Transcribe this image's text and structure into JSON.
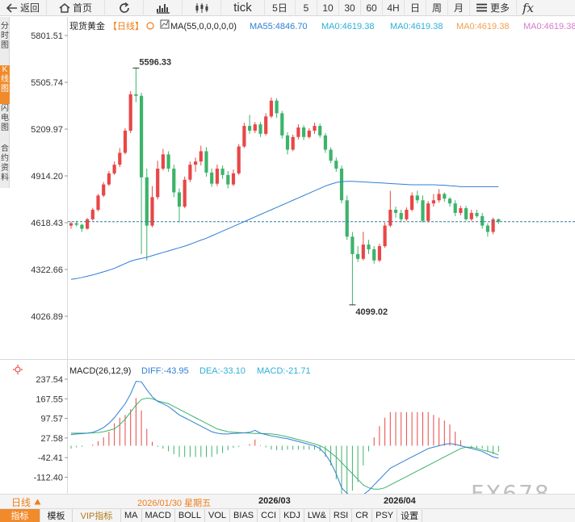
{
  "toolbar": {
    "back": "返回",
    "home": "首页",
    "tick": "tick",
    "periods": [
      "5日",
      "5",
      "10",
      "30",
      "60",
      "4H",
      "日",
      "周",
      "月"
    ],
    "more": "更多",
    "fx": "fx"
  },
  "side_tabs": [
    "分时图",
    "K线图",
    "闪电图",
    "合约资料"
  ],
  "kline": {
    "title": "现货黄金",
    "period_tag": "【日线】",
    "ma_label": "MA(55,0,0,0,0,0)",
    "ma_values": [
      "MA55:4846.70",
      "MA0:4619.38",
      "MA0:4619.38",
      "MA0:4619.38",
      "MA0:4619.38"
    ],
    "y_ticks": [
      "5801.51",
      "5505.74",
      "5209.97",
      "4914.20",
      "4618.43",
      "4322.66",
      "4026.89"
    ],
    "high_label": "5596.33",
    "low_label": "4099.02"
  },
  "macd": {
    "label": "MACD(26,12,9)",
    "diff": "DIFF:-43.95",
    "dea": "DEA:-33.10",
    "macd": "MACD:-21.71",
    "y_ticks": [
      "237.54",
      "167.55",
      "97.57",
      "27.58",
      "-42.41",
      "-112.40"
    ]
  },
  "period_button": "日线",
  "x_dates": [
    "2026/01/30 星期五",
    "2026/03",
    "2026/04"
  ],
  "indicators": [
    "指标",
    "模板",
    "VIP指标",
    "MA",
    "MACD",
    "BOLL",
    "VOL",
    "BIAS",
    "CCI",
    "KDJ",
    "LW&",
    "RSI",
    "CR",
    "PSY",
    "设置"
  ],
  "watermark": "FX678",
  "colors": {
    "up": "#e84747",
    "down": "#3db36b",
    "ma55": "#2f7fd4",
    "accent": "#f08a2b",
    "dea": "#3db36b",
    "diff": "#2f7fd4"
  },
  "chart_data": {
    "type": "candlestick",
    "candles": [
      [
        4600,
        4615,
        4580,
        4625
      ],
      [
        4615,
        4605,
        4595,
        4630
      ],
      [
        4605,
        4580,
        4560,
        4612
      ],
      [
        4580,
        4640,
        4575,
        4648
      ],
      [
        4640,
        4700,
        4632,
        4712
      ],
      [
        4700,
        4790,
        4690,
        4800
      ],
      [
        4790,
        4860,
        4780,
        4875
      ],
      [
        4860,
        4930,
        4850,
        4945
      ],
      [
        4930,
        4985,
        4920,
        5005
      ],
      [
        4985,
        5060,
        4970,
        5090
      ],
      [
        5060,
        5200,
        5050,
        5215
      ],
      [
        5200,
        5430,
        5185,
        5450
      ],
      [
        5430,
        5420,
        5380,
        5596
      ],
      [
        5420,
        4905,
        4420,
        5440
      ],
      [
        4905,
        4600,
        4380,
        4960
      ],
      [
        4600,
        4780,
        4590,
        4850
      ],
      [
        4780,
        4960,
        4765,
        5010
      ],
      [
        4960,
        5050,
        4948,
        5085
      ],
      [
        5050,
        4960,
        4940,
        5070
      ],
      [
        4960,
        4810,
        4780,
        4985
      ],
      [
        4810,
        4720,
        4620,
        4835
      ],
      [
        4720,
        4890,
        4710,
        4910
      ],
      [
        4890,
        4985,
        4875,
        5005
      ],
      [
        4985,
        5005,
        4940,
        5030
      ],
      [
        5005,
        5070,
        4980,
        5105
      ],
      [
        5070,
        4935,
        4910,
        5095
      ],
      [
        4935,
        4865,
        4845,
        4960
      ],
      [
        4865,
        4960,
        4850,
        4985
      ],
      [
        4960,
        4920,
        4895,
        4980
      ],
      [
        4920,
        4860,
        4835,
        4945
      ],
      [
        4860,
        4930,
        4850,
        4955
      ],
      [
        4930,
        5100,
        4920,
        5115
      ],
      [
        5100,
        5230,
        5090,
        5250
      ],
      [
        5230,
        5200,
        5180,
        5300
      ],
      [
        5200,
        5240,
        5185,
        5255
      ],
      [
        5240,
        5180,
        5160,
        5255
      ],
      [
        5180,
        5290,
        5170,
        5310
      ],
      [
        5290,
        5390,
        5280,
        5410
      ],
      [
        5390,
        5310,
        5280,
        5405
      ],
      [
        5310,
        5170,
        5150,
        5325
      ],
      [
        5170,
        5080,
        5050,
        5190
      ],
      [
        5080,
        5160,
        5070,
        5175
      ],
      [
        5160,
        5220,
        5145,
        5240
      ],
      [
        5220,
        5160,
        5140,
        5235
      ],
      [
        5160,
        5200,
        5150,
        5215
      ],
      [
        5200,
        5230,
        5180,
        5250
      ],
      [
        5230,
        5170,
        5155,
        5245
      ],
      [
        5170,
        5080,
        5060,
        5185
      ],
      [
        5080,
        5010,
        4995,
        5095
      ],
      [
        5010,
        4960,
        4940,
        5030
      ],
      [
        4960,
        4760,
        4740,
        4980
      ],
      [
        4760,
        4530,
        4510,
        4790
      ],
      [
        4530,
        4420,
        4099,
        4560
      ],
      [
        4420,
        4390,
        4370,
        4470
      ],
      [
        4390,
        4480,
        4380,
        4560
      ],
      [
        4480,
        4450,
        4420,
        4510
      ],
      [
        4450,
        4380,
        4360,
        4470
      ],
      [
        4380,
        4470,
        4370,
        4485
      ],
      [
        4470,
        4600,
        4460,
        4620
      ],
      [
        4600,
        4700,
        4590,
        4820
      ],
      [
        4700,
        4680,
        4650,
        4720
      ],
      [
        4680,
        4640,
        4620,
        4700
      ],
      [
        4640,
        4700,
        4630,
        4715
      ],
      [
        4700,
        4790,
        4690,
        4810
      ],
      [
        4790,
        4760,
        4740,
        4820
      ],
      [
        4760,
        4630,
        4620,
        4790
      ],
      [
        4630,
        4740,
        4620,
        4755
      ],
      [
        4740,
        4760,
        4720,
        4800
      ],
      [
        4760,
        4800,
        4745,
        4830
      ],
      [
        4800,
        4770,
        4750,
        4810
      ],
      [
        4770,
        4740,
        4720,
        4780
      ],
      [
        4740,
        4680,
        4660,
        4760
      ],
      [
        4680,
        4710,
        4665,
        4725
      ],
      [
        4710,
        4640,
        4630,
        4725
      ],
      [
        4640,
        4680,
        4630,
        4700
      ],
      [
        4680,
        4660,
        4650,
        4700
      ],
      [
        4660,
        4600,
        4580,
        4680
      ],
      [
        4600,
        4560,
        4530,
        4615
      ],
      [
        4560,
        4640,
        4545,
        4650
      ],
      [
        4640,
        4625,
        4610,
        4645
      ]
    ],
    "ma55": [
      4260,
      4265,
      4272,
      4280,
      4288,
      4298,
      4308,
      4318,
      4330,
      4345,
      4360,
      4375,
      4385,
      4392,
      4400,
      4410,
      4420,
      4430,
      4440,
      4450,
      4460,
      4470,
      4482,
      4495,
      4508,
      4520,
      4535,
      4550,
      4565,
      4580,
      4595,
      4610,
      4625,
      4640,
      4655,
      4670,
      4685,
      4700,
      4715,
      4730,
      4745,
      4760,
      4775,
      4790,
      4805,
      4820,
      4835,
      4850,
      4862,
      4872,
      4878,
      4880,
      4880,
      4878,
      4876,
      4874,
      4872,
      4870,
      4868,
      4866,
      4864,
      4862,
      4860,
      4858,
      4858,
      4858,
      4858,
      4858,
      4856,
      4855,
      4852,
      4850,
      4846,
      4846,
      4846,
      4846,
      4846,
      4846,
      4846,
      4846
    ],
    "macd_diff": [
      40,
      42,
      43,
      45,
      48,
      55,
      65,
      80,
      100,
      125,
      150,
      185,
      230,
      228,
      200,
      175,
      158,
      150,
      140,
      125,
      110,
      100,
      90,
      80,
      70,
      60,
      50,
      45,
      42,
      42,
      44,
      45,
      46,
      48,
      55,
      45,
      40,
      35,
      32,
      28,
      25,
      20,
      15,
      10,
      5,
      0,
      -10,
      -30,
      -60,
      -100,
      -150,
      -170,
      -180,
      -185,
      -175,
      -160,
      -140,
      -120,
      -100,
      -80,
      -70,
      -60,
      -50,
      -40,
      -30,
      -20,
      -10,
      -5,
      0,
      5,
      8,
      5,
      0,
      -5,
      -10,
      -15,
      -20,
      -30,
      -40,
      -44
    ],
    "macd_dea": [
      45,
      45,
      45,
      45,
      46,
      47,
      50,
      55,
      60,
      75,
      95,
      120,
      145,
      165,
      170,
      168,
      160,
      155,
      150,
      140,
      130,
      120,
      110,
      100,
      90,
      80,
      70,
      60,
      55,
      50,
      48,
      47,
      46,
      45,
      44,
      44,
      43,
      42,
      40,
      36,
      32,
      27,
      22,
      17,
      12,
      7,
      0,
      -10,
      -25,
      -40,
      -60,
      -80,
      -100,
      -120,
      -140,
      -150,
      -155,
      -155,
      -150,
      -140,
      -130,
      -120,
      -110,
      -100,
      -90,
      -80,
      -70,
      -60,
      -50,
      -40,
      -30,
      -20,
      -10,
      -5,
      -5,
      -10,
      -15,
      -20,
      -25,
      -33
    ],
    "macd_hist": [
      -10,
      -6,
      -4,
      0,
      4,
      16,
      30,
      50,
      80,
      100,
      110,
      130,
      170,
      126,
      60,
      14,
      -4,
      -10,
      -20,
      -30,
      -40,
      -40,
      -40,
      -40,
      -40,
      -40,
      -40,
      -30,
      -26,
      -16,
      -8,
      -4,
      0,
      6,
      22,
      2,
      -6,
      -14,
      -16,
      -16,
      -14,
      -14,
      -14,
      -14,
      -14,
      -14,
      -20,
      -40,
      -70,
      -120,
      -180,
      -180,
      -160,
      -130,
      -70,
      -20,
      30,
      70,
      100,
      120,
      120,
      120,
      120,
      120,
      120,
      120,
      120,
      110,
      100,
      90,
      76,
      50,
      20,
      0,
      -10,
      -10,
      -10,
      -20,
      -30,
      -22
    ]
  }
}
